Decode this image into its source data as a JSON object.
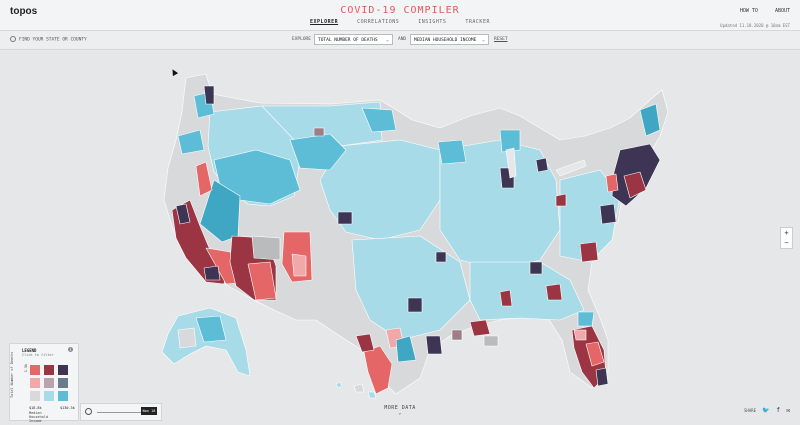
{
  "header": {
    "logo": "topos",
    "title": "COVID-19 COMPILER",
    "tabs": [
      "EXPLORER",
      "CORRELATIONS",
      "INSIGHTS",
      "TRACKER"
    ],
    "active_tab": "EXPLORER",
    "links": [
      "HOW TO",
      "ABOUT"
    ],
    "updated": "Updated 11.18.2020 @ 10am EST"
  },
  "toolbar": {
    "search_placeholder": "FIND YOUR STATE OR COUNTY",
    "explore_label": "EXPLORE",
    "metric1": "TOTAL NUMBER OF DEATHS",
    "and_label": "AND",
    "metric2": "MEDIAN HOUSEHOLD INCOME",
    "reset": "RESET"
  },
  "map": {
    "palette": {
      "light_grey": "#d7d9db",
      "light_blue": "#a8dbe8",
      "mid_blue": "#5dbdd6",
      "teal": "#3fa7c4",
      "dark_navy": "#3d3553",
      "maroon": "#9b3544",
      "red": "#e46666",
      "pink": "#f1a8a8",
      "mauve": "#9d7e87",
      "grey": "#b9bbbd",
      "border": "#ffffff"
    }
  },
  "zoom": {
    "plus": "+",
    "minus": "−"
  },
  "legend": {
    "title": "LEGEND",
    "subtitle": "Click to filter",
    "y_axis_label": "Total Number of Deaths",
    "y_axis_value": "1.5k",
    "x_min": "$18.8k",
    "x_max": "$130.3k",
    "x_axis_label": "Median Household Income",
    "grid_colors": [
      [
        "#e46666",
        "#9b3544",
        "#3d3553"
      ],
      [
        "#f1a8a8",
        "#b9a4ab",
        "#6a7a8f"
      ],
      [
        "#d7d9db",
        "#a8dbe8",
        "#5dbdd6"
      ]
    ]
  },
  "timeline": {
    "date": "Nov 18"
  },
  "footer": {
    "more_data": "MORE DATA",
    "share": "SHARE"
  }
}
